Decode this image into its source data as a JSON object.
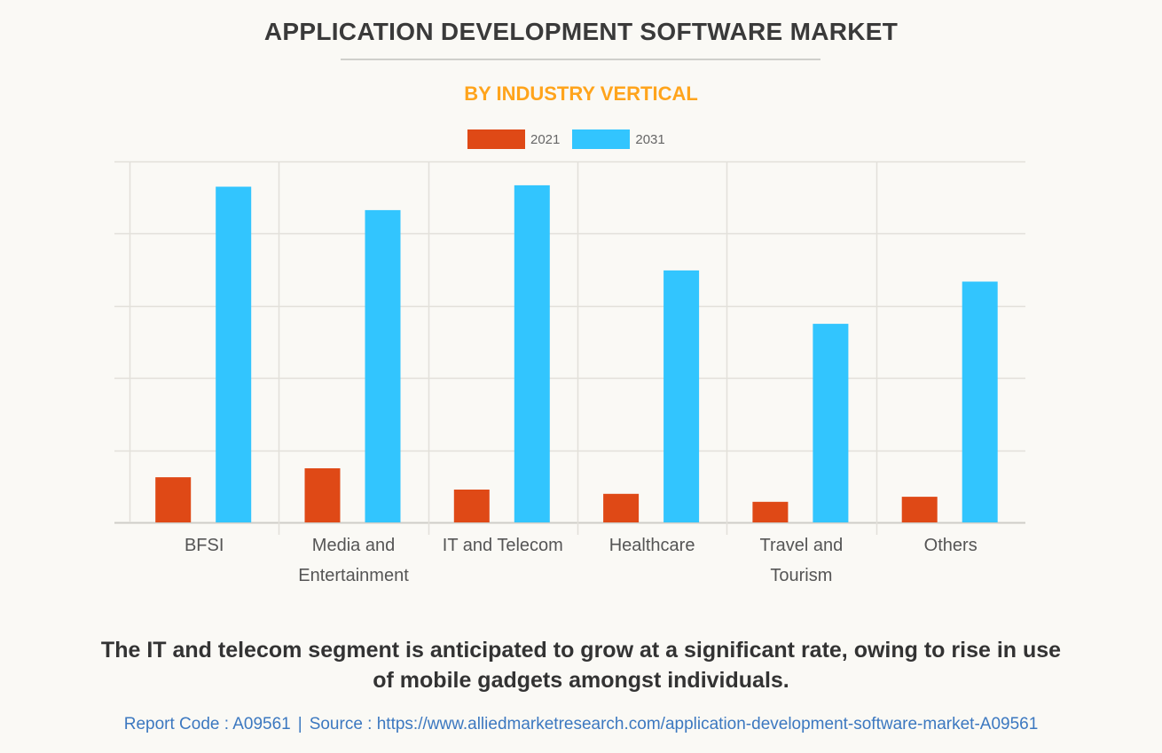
{
  "header": {
    "title": "APPLICATION DEVELOPMENT SOFTWARE MARKET",
    "subtitle": "BY INDUSTRY VERTICAL"
  },
  "colors": {
    "series_2021": "#df4916",
    "series_2031": "#32c5fe",
    "subtitle": "#ffa41c",
    "title": "#3a3a3a",
    "gridline": "#e2e0da",
    "source_link": "#3c78c0"
  },
  "chart_data": {
    "type": "bar",
    "title": "APPLICATION DEVELOPMENT SOFTWARE MARKET",
    "subtitle": "BY INDUSTRY VERTICAL",
    "xlabel": "",
    "ylabel": "",
    "y_units_note": "No y-axis tick labels shown; values are relative, with the top gridline = 100",
    "ylim": [
      0,
      100
    ],
    "y_gridlines": [
      0,
      20,
      40,
      60,
      80,
      100
    ],
    "grid": true,
    "legend_position": "top-center",
    "categories": [
      [
        "BFSI"
      ],
      [
        "Media and",
        "Entertainment"
      ],
      [
        "IT and Telecom"
      ],
      [
        "Healthcare"
      ],
      [
        "Travel and",
        "Tourism"
      ],
      [
        "Others"
      ]
    ],
    "category_names": [
      "BFSI",
      "Media and Entertainment",
      "IT and Telecom",
      "Healthcare",
      "Travel and Tourism",
      "Others"
    ],
    "series": [
      {
        "name": "2021",
        "color": "#df4916",
        "values": [
          12.5,
          15.0,
          9.1,
          7.9,
          5.7,
          7.1
        ]
      },
      {
        "name": "2031",
        "color": "#32c5fe",
        "values": [
          93.0,
          86.5,
          93.4,
          69.8,
          55.0,
          66.7
        ]
      }
    ]
  },
  "legend": [
    {
      "label": "2021",
      "color": "#df4916"
    },
    {
      "label": "2031",
      "color": "#32c5fe"
    }
  ],
  "caption": {
    "line1": "The IT and telecom segment is anticipated to grow at a significant rate, owing to rise in use",
    "line2": "of mobile gadgets amongst individuals."
  },
  "footer": {
    "report_code": "Report Code : A09561",
    "separator": "|",
    "source": "Source : https://www.alliedmarketresearch.com/application-development-software-market-A09561"
  }
}
